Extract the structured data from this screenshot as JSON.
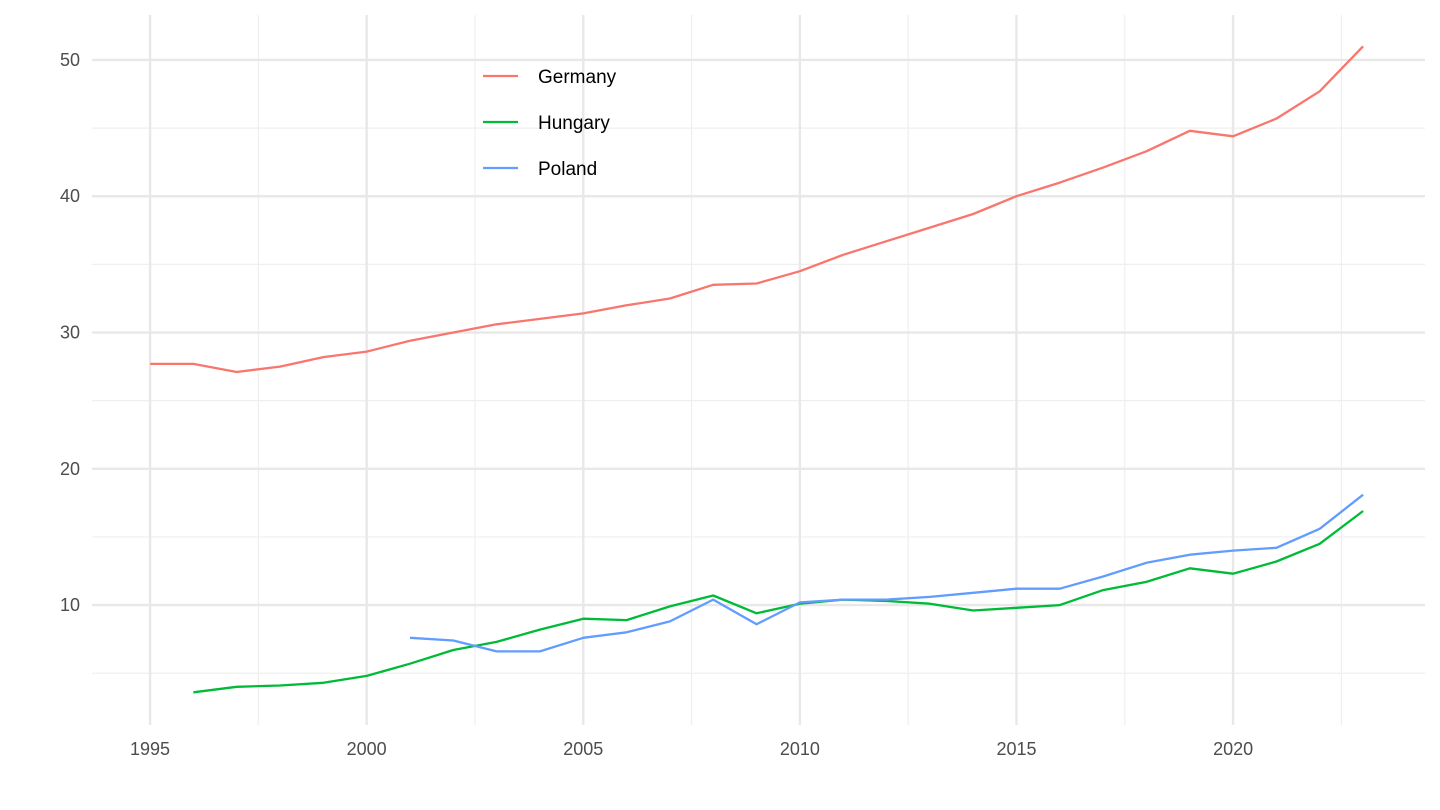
{
  "chart_data": {
    "type": "line",
    "title": "",
    "xlabel": "",
    "ylabel": "",
    "xlim": [
      1993.66,
      2024.43
    ],
    "ylim": [
      1.2,
      53.3
    ],
    "x_ticks": [
      1995,
      2000,
      2005,
      2010,
      2015,
      2020
    ],
    "x_tick_labels": [
      "1995",
      "2000",
      "2005",
      "2010",
      "2015",
      "2020"
    ],
    "y_ticks": [
      10,
      20,
      30,
      40,
      50
    ],
    "y_tick_labels": [
      "10",
      "20",
      "30",
      "40",
      "50"
    ],
    "grid": true,
    "legend_position": "top-center-inside",
    "series": [
      {
        "name": "Germany",
        "color": "#F8766D",
        "x": [
          1995,
          1996,
          1997,
          1998,
          1999,
          2000,
          2001,
          2002,
          2003,
          2004,
          2005,
          2006,
          2007,
          2008,
          2009,
          2010,
          2011,
          2012,
          2013,
          2014,
          2015,
          2016,
          2017,
          2018,
          2019,
          2020,
          2021,
          2022,
          2023
        ],
        "values": [
          27.7,
          27.7,
          27.1,
          27.5,
          28.2,
          28.6,
          29.4,
          30.0,
          30.6,
          31.0,
          31.4,
          32.0,
          32.5,
          33.5,
          33.6,
          34.5,
          35.7,
          36.7,
          37.7,
          38.7,
          40.0,
          41.0,
          42.1,
          43.3,
          44.8,
          44.4,
          45.7,
          47.7,
          51.0
        ]
      },
      {
        "name": "Hungary",
        "color": "#00BA38",
        "x": [
          1996,
          1997,
          1998,
          1999,
          2000,
          2001,
          2002,
          2003,
          2004,
          2005,
          2006,
          2007,
          2008,
          2009,
          2010,
          2011,
          2012,
          2013,
          2014,
          2015,
          2016,
          2017,
          2018,
          2019,
          2020,
          2021,
          2022,
          2023
        ],
        "values": [
          3.6,
          4.0,
          4.1,
          4.3,
          4.8,
          5.7,
          6.7,
          7.3,
          8.2,
          9.0,
          8.9,
          9.9,
          10.7,
          9.4,
          10.1,
          10.4,
          10.3,
          10.1,
          9.6,
          9.8,
          10.0,
          11.1,
          11.7,
          12.7,
          12.3,
          13.2,
          14.5,
          16.9
        ]
      },
      {
        "name": "Poland",
        "color": "#619CFF",
        "x": [
          2001,
          2002,
          2003,
          2004,
          2005,
          2006,
          2007,
          2008,
          2009,
          2010,
          2011,
          2012,
          2013,
          2014,
          2015,
          2016,
          2017,
          2018,
          2019,
          2020,
          2021,
          2022,
          2023
        ],
        "values": [
          7.6,
          7.4,
          6.6,
          6.6,
          7.6,
          8.0,
          8.8,
          10.4,
          8.6,
          10.2,
          10.4,
          10.4,
          10.6,
          10.9,
          11.2,
          11.2,
          12.1,
          13.1,
          13.7,
          14.0,
          14.2,
          15.6,
          18.1
        ]
      }
    ]
  }
}
